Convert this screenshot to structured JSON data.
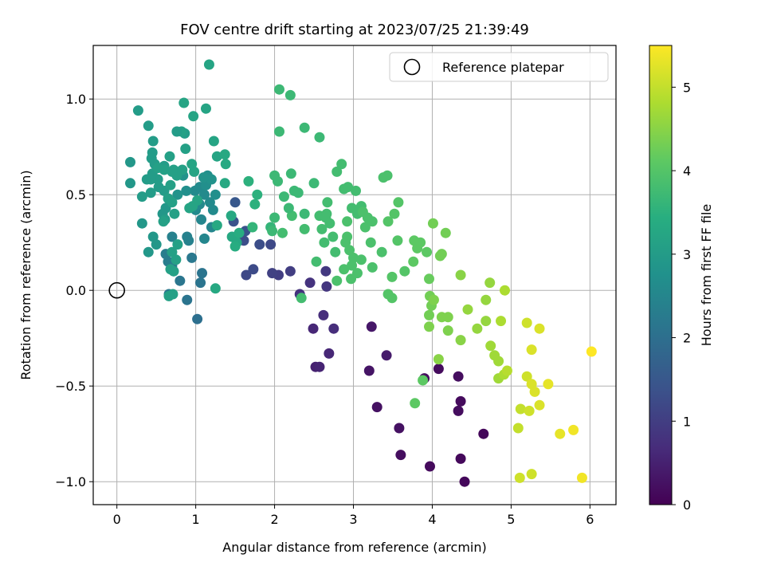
{
  "chart_data": {
    "type": "scatter",
    "title": "FOV centre drift starting at 2023/07/25 21:39:49",
    "xlabel": "Angular distance from reference (arcmin)",
    "ylabel": "Rotation from reference (arcmin)",
    "xlim": [
      -0.3,
      6.33
    ],
    "ylim": [
      -1.12,
      1.28
    ],
    "x_ticks": [
      0,
      1,
      2,
      3,
      4,
      5,
      6
    ],
    "x_tick_labels": [
      "0",
      "1",
      "2",
      "3",
      "4",
      "5",
      "6"
    ],
    "y_ticks": [
      -1.0,
      -0.5,
      0.0,
      0.5,
      1.0
    ],
    "y_tick_labels": [
      "−1.0",
      "−0.5",
      "0.0",
      "0.5",
      "1.0"
    ],
    "grid": true,
    "legend": {
      "position": "top-right",
      "label": "Reference platepar",
      "marker": "hollow-circle"
    },
    "reference_point": {
      "x": 0,
      "y": 0
    },
    "colorbar": {
      "label": "Hours from first FF file",
      "colormap": "viridis",
      "range": [
        0,
        5.5
      ],
      "ticks": [
        0,
        1,
        2,
        3,
        4,
        5
      ],
      "tick_labels": [
        "0",
        "1",
        "2",
        "3",
        "4",
        "5"
      ]
    },
    "points": [
      [
        4.41,
        -1.0,
        0.1
      ],
      [
        3.97,
        -0.92,
        0.15
      ],
      [
        3.6,
        -0.86,
        0.2
      ],
      [
        4.36,
        -0.88,
        0.12
      ],
      [
        4.65,
        -0.75,
        0.1
      ],
      [
        3.58,
        -0.72,
        0.25
      ],
      [
        4.36,
        -0.58,
        0.15
      ],
      [
        4.33,
        -0.63,
        0.18
      ],
      [
        3.3,
        -0.61,
        0.25
      ],
      [
        3.9,
        -0.46,
        0.2
      ],
      [
        4.08,
        -0.41,
        0.15
      ],
      [
        4.33,
        -0.45,
        0.2
      ],
      [
        3.2,
        -0.42,
        0.3
      ],
      [
        3.42,
        -0.34,
        0.4
      ],
      [
        3.23,
        -0.19,
        0.35
      ],
      [
        2.52,
        -0.4,
        0.5
      ],
      [
        2.57,
        -0.4,
        0.55
      ],
      [
        2.69,
        -0.33,
        0.6
      ],
      [
        2.49,
        -0.2,
        0.6
      ],
      [
        2.62,
        -0.13,
        0.7
      ],
      [
        2.75,
        -0.2,
        0.7
      ],
      [
        2.32,
        -0.02,
        0.8
      ],
      [
        2.45,
        0.04,
        0.8
      ],
      [
        2.66,
        0.02,
        0.85
      ],
      [
        2.65,
        0.1,
        0.9
      ],
      [
        2.2,
        0.1,
        1.0
      ],
      [
        2.05,
        0.08,
        1.0
      ],
      [
        1.97,
        0.09,
        1.05
      ],
      [
        1.95,
        0.24,
        1.2
      ],
      [
        1.64,
        0.08,
        1.2
      ],
      [
        1.73,
        0.11,
        1.25
      ],
      [
        1.81,
        0.24,
        1.3
      ],
      [
        1.61,
        0.26,
        1.3
      ],
      [
        1.63,
        0.31,
        1.4
      ],
      [
        1.48,
        0.36,
        1.4
      ],
      [
        1.5,
        0.46,
        1.5
      ],
      [
        1.02,
        -0.15,
        2.0
      ],
      [
        0.89,
        -0.05,
        2.1
      ],
      [
        1.08,
        0.09,
        2.1
      ],
      [
        1.06,
        0.04,
        2.1
      ],
      [
        0.8,
        0.05,
        2.15
      ],
      [
        0.66,
        -0.02,
        2.2
      ],
      [
        0.72,
        0.1,
        2.2
      ],
      [
        0.95,
        0.17,
        2.2
      ],
      [
        0.7,
        0.13,
        2.25
      ],
      [
        0.65,
        0.15,
        2.3
      ],
      [
        0.62,
        0.19,
        2.3
      ],
      [
        0.7,
        0.28,
        2.4
      ],
      [
        0.89,
        0.28,
        2.4
      ],
      [
        0.91,
        0.26,
        2.4
      ],
      [
        1.11,
        0.27,
        2.5
      ],
      [
        1.2,
        0.33,
        2.5
      ],
      [
        1.07,
        0.37,
        2.5
      ],
      [
        1.22,
        0.42,
        2.6
      ],
      [
        1.05,
        0.45,
        2.6
      ],
      [
        1.0,
        0.42,
        2.6
      ],
      [
        0.99,
        0.52,
        2.6
      ],
      [
        1.05,
        0.54,
        2.6
      ],
      [
        1.11,
        0.5,
        2.6
      ],
      [
        1.18,
        0.46,
        2.6
      ],
      [
        1.25,
        0.5,
        2.7
      ],
      [
        1.13,
        0.55,
        2.7
      ],
      [
        1.15,
        0.6,
        2.7
      ],
      [
        1.2,
        0.58,
        2.8
      ],
      [
        1.1,
        0.59,
        2.8
      ],
      [
        0.88,
        0.52,
        2.7
      ],
      [
        0.84,
        0.6,
        2.8
      ],
      [
        0.77,
        0.5,
        2.8
      ],
      [
        0.75,
        0.62,
        2.9
      ],
      [
        0.62,
        0.43,
        2.9
      ],
      [
        0.58,
        0.4,
        2.9
      ],
      [
        0.52,
        0.58,
        3.0
      ],
      [
        0.48,
        0.66,
        3.0
      ],
      [
        0.43,
        0.58,
        3.0
      ],
      [
        0.43,
        0.51,
        3.0
      ],
      [
        0.32,
        0.49,
        3.0
      ],
      [
        0.38,
        0.58,
        3.0
      ],
      [
        0.45,
        0.61,
        3.0
      ],
      [
        0.53,
        0.54,
        3.0
      ],
      [
        0.6,
        0.52,
        3.0
      ],
      [
        0.6,
        0.65,
        3.0
      ],
      [
        0.67,
        0.7,
        3.1
      ],
      [
        0.72,
        0.63,
        3.1
      ],
      [
        0.83,
        0.63,
        3.1
      ],
      [
        0.87,
        0.74,
        3.1
      ],
      [
        0.86,
        0.82,
        3.0
      ],
      [
        0.82,
        0.83,
        3.1
      ],
      [
        0.76,
        0.83,
        3.0
      ],
      [
        0.45,
        0.72,
        3.0
      ],
      [
        0.46,
        0.78,
        3.0
      ],
      [
        0.4,
        0.86,
        3.0
      ],
      [
        0.44,
        0.69,
        3.0
      ],
      [
        0.27,
        0.94,
        3.0
      ],
      [
        0.17,
        0.67,
        2.9
      ],
      [
        0.17,
        0.56,
        2.9
      ],
      [
        0.32,
        0.35,
        2.9
      ],
      [
        0.4,
        0.2,
        2.9
      ],
      [
        0.46,
        0.28,
        2.9
      ],
      [
        0.5,
        0.24,
        2.9
      ],
      [
        0.61,
        0.37,
        3.0
      ],
      [
        0.76,
        0.6,
        3.1
      ],
      [
        0.6,
        0.63,
        3.1
      ],
      [
        0.7,
        0.62,
        3.1
      ],
      [
        0.52,
        0.64,
        3.1
      ],
      [
        0.59,
        0.36,
        3.1
      ],
      [
        0.65,
        0.48,
        3.1
      ],
      [
        0.68,
        0.55,
        3.1
      ],
      [
        0.7,
        0.46,
        3.1
      ],
      [
        0.73,
        0.4,
        3.1
      ],
      [
        0.77,
        0.24,
        3.1
      ],
      [
        0.7,
        0.2,
        3.1
      ],
      [
        0.75,
        0.16,
        3.1
      ],
      [
        0.68,
        0.11,
        3.1
      ],
      [
        0.72,
        0.1,
        3.1
      ],
      [
        0.71,
        -0.02,
        3.1
      ],
      [
        0.66,
        -0.03,
        3.1
      ],
      [
        0.92,
        0.43,
        3.2
      ],
      [
        0.96,
        0.44,
        3.2
      ],
      [
        1.02,
        0.47,
        3.2
      ],
      [
        0.98,
        0.62,
        3.2
      ],
      [
        0.95,
        0.66,
        3.2
      ],
      [
        0.97,
        0.91,
        3.2
      ],
      [
        0.85,
        0.98,
        3.2
      ],
      [
        1.13,
        0.95,
        3.2
      ],
      [
        1.17,
        1.18,
        3.2
      ],
      [
        1.23,
        0.78,
        3.2
      ],
      [
        1.27,
        0.7,
        3.2
      ],
      [
        1.27,
        0.34,
        3.3
      ],
      [
        1.25,
        0.01,
        3.3
      ],
      [
        1.37,
        0.71,
        3.3
      ],
      [
        1.38,
        0.66,
        3.3
      ],
      [
        1.37,
        0.56,
        3.3
      ],
      [
        1.45,
        0.39,
        3.3
      ],
      [
        1.46,
        0.28,
        3.3
      ],
      [
        1.52,
        0.25,
        3.3
      ],
      [
        1.5,
        0.23,
        3.4
      ],
      [
        1.55,
        0.3,
        3.4
      ],
      [
        1.75,
        0.45,
        3.5
      ],
      [
        1.78,
        0.5,
        3.5
      ],
      [
        1.67,
        0.57,
        3.5
      ],
      [
        1.72,
        0.33,
        3.6
      ],
      [
        1.95,
        0.33,
        3.6
      ],
      [
        1.97,
        0.31,
        3.7
      ],
      [
        2.0,
        0.38,
        3.7
      ],
      [
        2.1,
        0.3,
        3.8
      ],
      [
        2.22,
        0.39,
        3.8
      ],
      [
        2.18,
        0.43,
        3.7
      ],
      [
        2.12,
        0.49,
        3.7
      ],
      [
        2.21,
        0.61,
        3.7
      ],
      [
        2.25,
        0.52,
        3.7
      ],
      [
        2.3,
        0.51,
        3.7
      ],
      [
        2.04,
        0.57,
        3.7
      ],
      [
        2.0,
        0.6,
        3.7
      ],
      [
        2.06,
        0.83,
        3.7
      ],
      [
        2.06,
        1.05,
        3.7
      ],
      [
        2.2,
        1.02,
        3.7
      ],
      [
        2.38,
        0.85,
        3.7
      ],
      [
        2.57,
        0.8,
        3.7
      ],
      [
        2.5,
        0.56,
        3.7
      ],
      [
        2.38,
        0.4,
        3.7
      ],
      [
        2.38,
        0.32,
        3.8
      ],
      [
        2.53,
        0.15,
        3.8
      ],
      [
        2.34,
        -0.04,
        3.8
      ],
      [
        2.57,
        0.39,
        3.8
      ],
      [
        2.6,
        0.32,
        3.8
      ],
      [
        2.63,
        0.25,
        3.8
      ],
      [
        2.65,
        0.38,
        3.8
      ],
      [
        2.67,
        0.46,
        3.8
      ],
      [
        2.66,
        0.4,
        3.8
      ],
      [
        2.7,
        0.35,
        3.8
      ],
      [
        2.74,
        0.28,
        3.8
      ],
      [
        2.77,
        0.2,
        3.8
      ],
      [
        2.79,
        0.62,
        3.8
      ],
      [
        2.85,
        0.66,
        3.8
      ],
      [
        2.88,
        0.53,
        3.8
      ],
      [
        2.93,
        0.54,
        3.8
      ],
      [
        2.98,
        0.43,
        3.8
      ],
      [
        3.03,
        0.52,
        3.8
      ],
      [
        3.05,
        0.4,
        3.8
      ],
      [
        3.1,
        0.44,
        3.8
      ],
      [
        3.12,
        0.41,
        3.9
      ],
      [
        3.15,
        0.33,
        3.9
      ],
      [
        3.18,
        0.38,
        3.9
      ],
      [
        3.24,
        0.36,
        3.9
      ],
      [
        3.22,
        0.25,
        3.9
      ],
      [
        3.1,
        0.16,
        3.9
      ],
      [
        3.05,
        0.09,
        3.9
      ],
      [
        2.92,
        0.36,
        3.9
      ],
      [
        2.92,
        0.28,
        3.9
      ],
      [
        2.9,
        0.25,
        3.9
      ],
      [
        2.95,
        0.21,
        3.9
      ],
      [
        2.98,
        0.13,
        3.9
      ],
      [
        2.97,
        0.06,
        3.9
      ],
      [
        2.88,
        0.11,
        3.9
      ],
      [
        2.79,
        0.05,
        3.9
      ],
      [
        3.0,
        0.17,
        3.9
      ],
      [
        3.24,
        0.12,
        3.9
      ],
      [
        3.36,
        0.2,
        3.9
      ],
      [
        3.38,
        0.59,
        3.9
      ],
      [
        3.43,
        0.6,
        3.9
      ],
      [
        3.44,
        0.36,
        4.0
      ],
      [
        3.52,
        0.4,
        4.0
      ],
      [
        3.57,
        0.46,
        4.0
      ],
      [
        3.56,
        0.26,
        4.0
      ],
      [
        3.44,
        -0.02,
        4.0
      ],
      [
        3.49,
        -0.04,
        4.0
      ],
      [
        3.49,
        0.07,
        4.0
      ],
      [
        3.65,
        0.1,
        4.0
      ],
      [
        3.76,
        0.15,
        4.1
      ],
      [
        3.77,
        0.26,
        4.1
      ],
      [
        3.81,
        0.22,
        4.1
      ],
      [
        3.85,
        0.25,
        4.1
      ],
      [
        3.93,
        0.2,
        4.1
      ],
      [
        3.78,
        -0.59,
        4.1
      ],
      [
        3.88,
        -0.47,
        4.1
      ],
      [
        3.96,
        0.06,
        4.2
      ],
      [
        4.01,
        0.35,
        4.3
      ],
      [
        4.1,
        0.18,
        4.3
      ],
      [
        4.12,
        0.19,
        4.3
      ],
      [
        4.17,
        0.3,
        4.3
      ],
      [
        3.97,
        -0.03,
        4.3
      ],
      [
        3.99,
        -0.08,
        4.3
      ],
      [
        3.96,
        -0.13,
        4.3
      ],
      [
        3.96,
        -0.19,
        4.4
      ],
      [
        4.02,
        -0.05,
        4.4
      ],
      [
        4.12,
        -0.14,
        4.4
      ],
      [
        4.2,
        -0.14,
        4.4
      ],
      [
        4.2,
        -0.21,
        4.4
      ],
      [
        4.08,
        -0.36,
        4.5
      ],
      [
        4.36,
        -0.26,
        4.5
      ],
      [
        4.36,
        0.08,
        4.5
      ],
      [
        4.45,
        -0.1,
        4.6
      ],
      [
        4.57,
        -0.2,
        4.6
      ],
      [
        4.68,
        -0.05,
        4.6
      ],
      [
        4.73,
        0.04,
        4.6
      ],
      [
        4.68,
        -0.16,
        4.6
      ],
      [
        4.74,
        -0.29,
        4.7
      ],
      [
        4.79,
        -0.34,
        4.7
      ],
      [
        4.84,
        -0.37,
        4.7
      ],
      [
        4.84,
        -0.46,
        4.7
      ],
      [
        4.91,
        -0.44,
        4.8
      ],
      [
        4.87,
        -0.16,
        4.8
      ],
      [
        4.92,
        0.0,
        4.8
      ],
      [
        4.95,
        -0.42,
        4.9
      ],
      [
        5.09,
        -0.72,
        5.0
      ],
      [
        5.12,
        -0.62,
        5.0
      ],
      [
        5.11,
        -0.98,
        5.1
      ],
      [
        5.23,
        -0.63,
        5.1
      ],
      [
        5.2,
        -0.45,
        5.1
      ],
      [
        5.26,
        -0.96,
        5.1
      ],
      [
        5.2,
        -0.17,
        5.1
      ],
      [
        5.26,
        -0.31,
        5.2
      ],
      [
        5.26,
        -0.49,
        5.2
      ],
      [
        5.3,
        -0.53,
        5.2
      ],
      [
        5.36,
        -0.6,
        5.2
      ],
      [
        5.36,
        -0.2,
        5.2
      ],
      [
        5.47,
        -0.49,
        5.3
      ],
      [
        5.62,
        -0.75,
        5.3
      ],
      [
        5.79,
        -0.73,
        5.4
      ],
      [
        5.9,
        -0.98,
        5.4
      ],
      [
        6.02,
        -0.32,
        5.5
      ]
    ]
  }
}
